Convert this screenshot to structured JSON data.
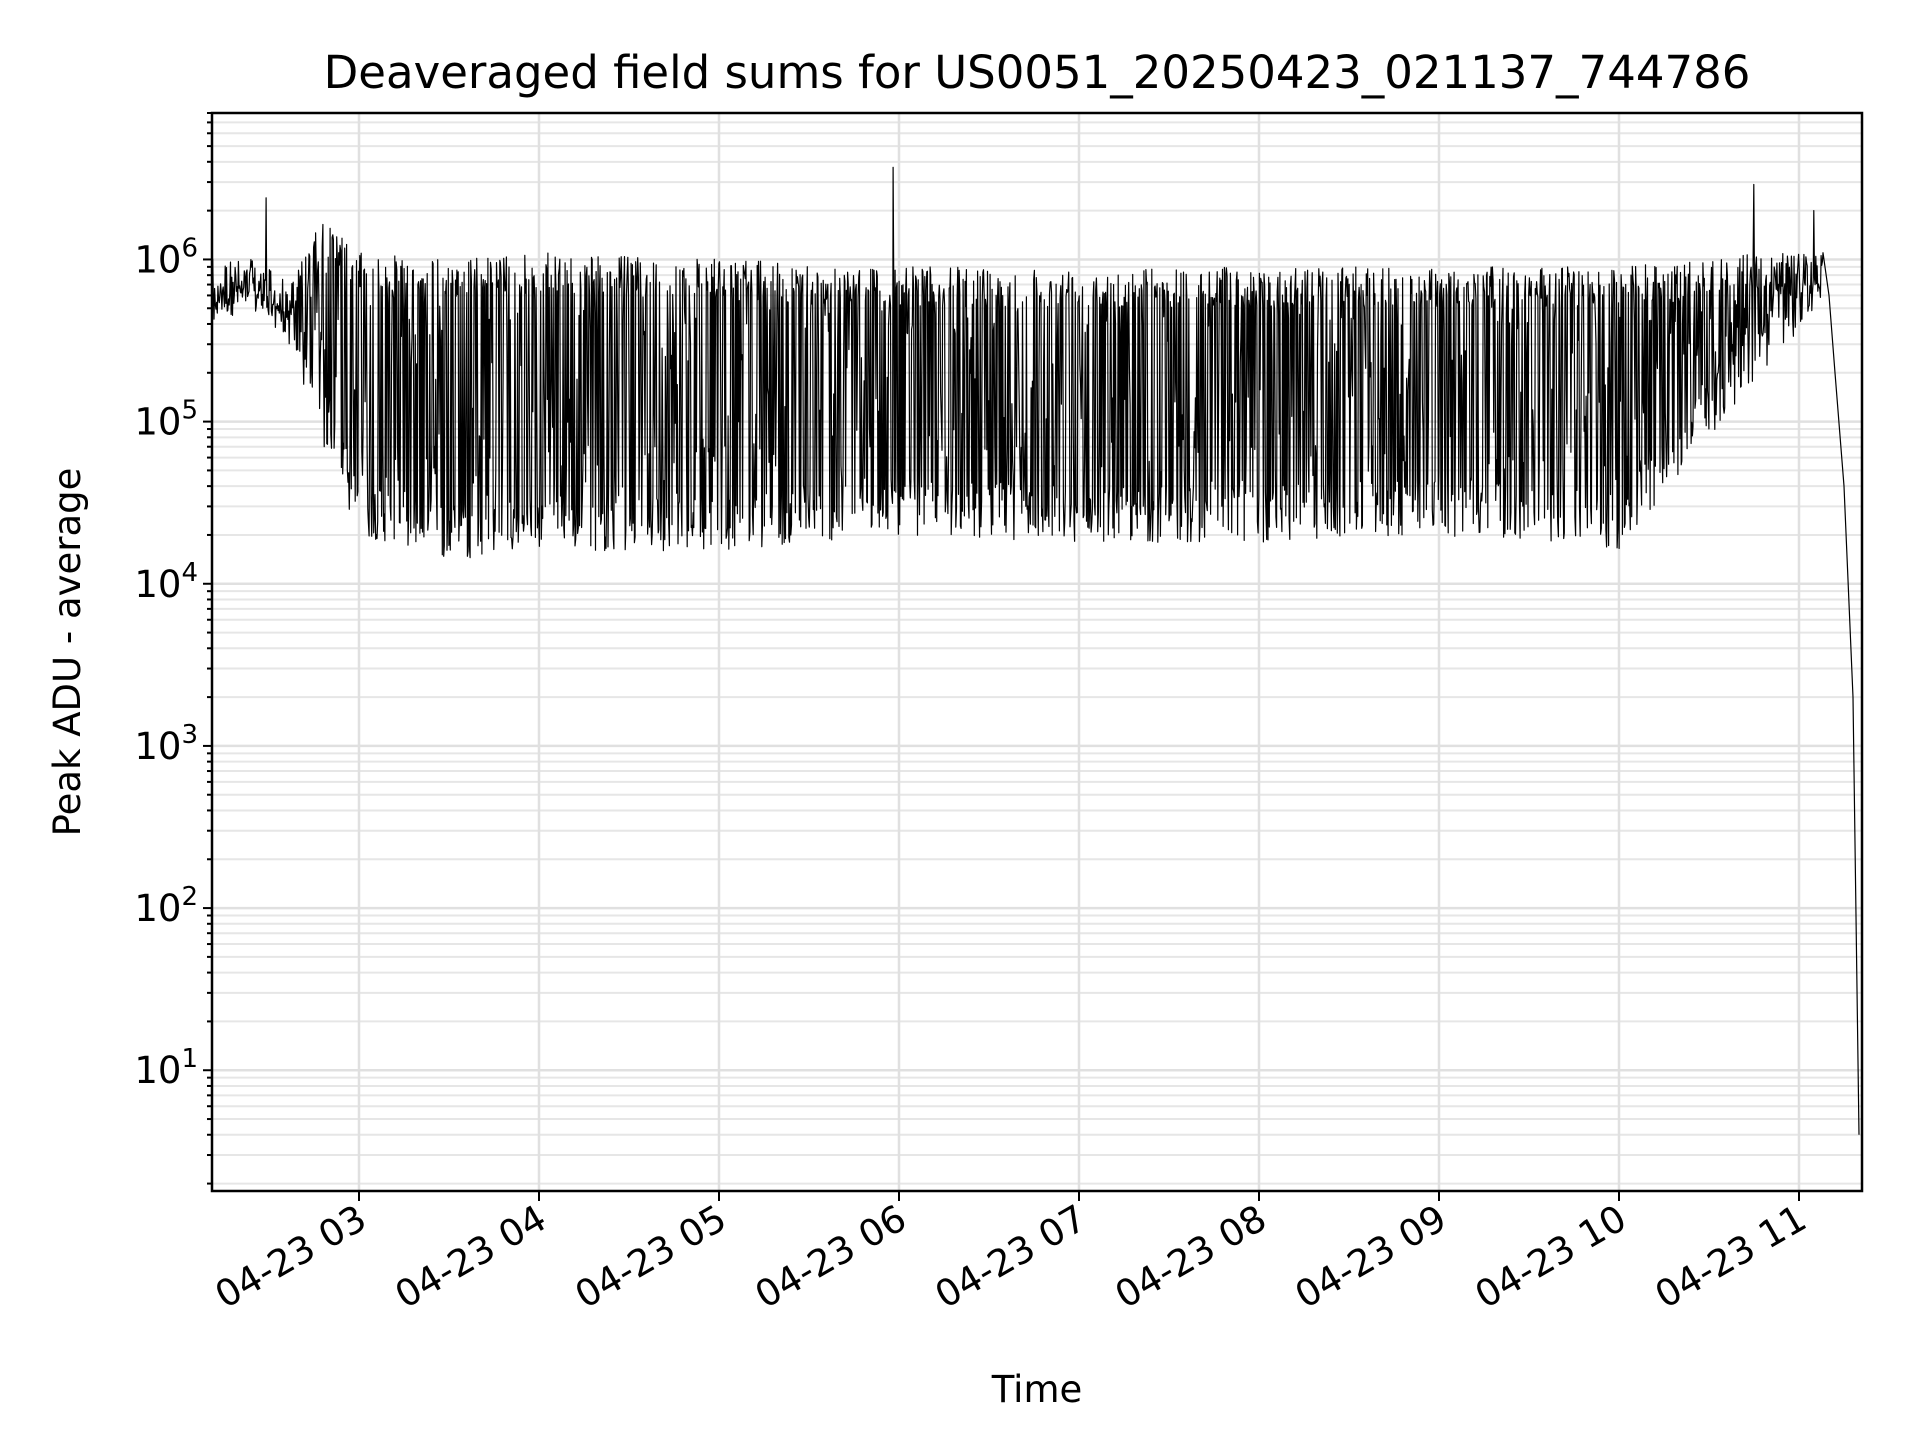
{
  "chart_data": {
    "type": "line",
    "title": "Deaveraged field sums for US0051_20250423_021137_744786",
    "xlabel": "Time",
    "ylabel": "Peak ADU - average",
    "yscale": "log",
    "ylim": [
      1.8,
      8000000
    ],
    "xlim": [
      "04-23 02:11",
      "04-23 11:21"
    ],
    "grid": true,
    "line_color": "#000000",
    "x_ticks": [
      "04-23 03",
      "04-23 04",
      "04-23 05",
      "04-23 06",
      "04-23 07",
      "04-23 08",
      "04-23 09",
      "04-23 10",
      "04-23 11"
    ],
    "y_ticks": [
      {
        "base": "10",
        "exp": "1",
        "value": 10
      },
      {
        "base": "10",
        "exp": "2",
        "value": 100
      },
      {
        "base": "10",
        "exp": "3",
        "value": 1000
      },
      {
        "base": "10",
        "exp": "4",
        "value": 10000
      },
      {
        "base": "10",
        "exp": "5",
        "value": 100000
      },
      {
        "base": "10",
        "exp": "6",
        "value": 1000000
      }
    ],
    "envelope": [
      {
        "t": "04-23 02:11",
        "low": 450000,
        "high": 700000
      },
      {
        "t": "04-23 02:24",
        "low": 450000,
        "high": 1000000
      },
      {
        "t": "04-23 02:35",
        "low": 350000,
        "high": 600000
      },
      {
        "t": "04-23 02:48",
        "low": 70000,
        "high": 1800000
      },
      {
        "t": "04-23 03:00",
        "low": 20000,
        "high": 1100000
      },
      {
        "t": "04-23 03:30",
        "low": 14000,
        "high": 1000000
      },
      {
        "t": "04-23 04:00",
        "low": 16000,
        "high": 1100000
      },
      {
        "t": "04-23 05:00",
        "low": 16000,
        "high": 1000000
      },
      {
        "t": "04-23 06:00",
        "low": 20000,
        "high": 900000
      },
      {
        "t": "04-23 07:00",
        "low": 18000,
        "high": 900000
      },
      {
        "t": "04-23 08:00",
        "low": 18000,
        "high": 900000
      },
      {
        "t": "04-23 09:00",
        "low": 20000,
        "high": 900000
      },
      {
        "t": "04-23 10:00",
        "low": 16000,
        "high": 900000
      },
      {
        "t": "04-23 10:30",
        "low": 80000,
        "high": 1000000
      },
      {
        "t": "04-23 10:48",
        "low": 200000,
        "high": 1100000
      },
      {
        "t": "04-23 11:06",
        "low": 500000,
        "high": 1100000
      }
    ],
    "spikes": [
      {
        "t": "04-23 02:29",
        "value": 2400000
      },
      {
        "t": "04-23 05:58",
        "value": 3700000
      },
      {
        "t": "04-23 10:45",
        "value": 2900000
      },
      {
        "t": "04-23 11:05",
        "value": 2000000
      }
    ],
    "tail": [
      {
        "t": "04-23 11:08",
        "value": 1100000
      },
      {
        "t": "04-23 11:10",
        "value": 600000
      },
      {
        "t": "04-23 11:12",
        "value": 200000
      },
      {
        "t": "04-23 11:15",
        "value": 40000
      },
      {
        "t": "04-23 11:18",
        "value": 2000
      },
      {
        "t": "04-23 11:20",
        "value": 4
      }
    ]
  }
}
